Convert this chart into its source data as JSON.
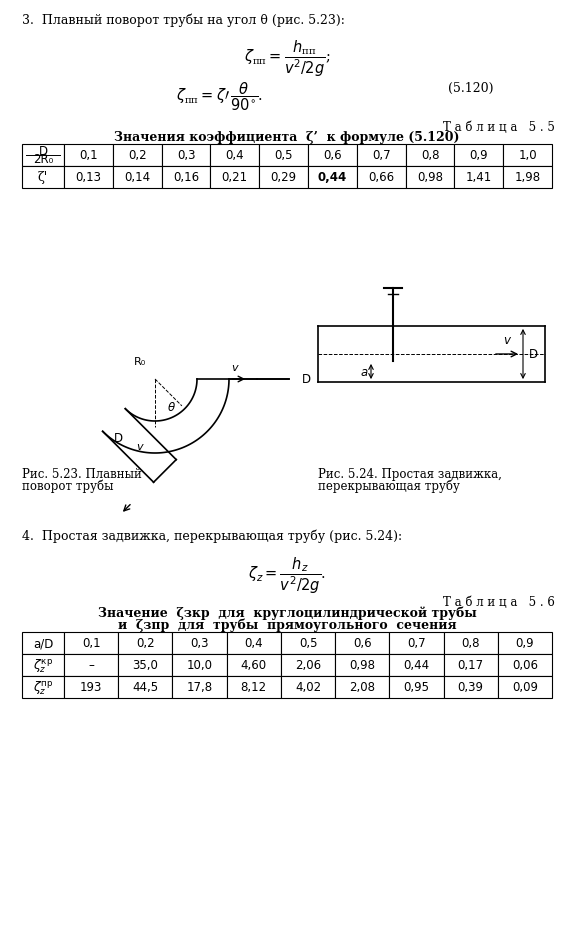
{
  "title_section3": "3.  Плавный поворот трубы на угол θ (рис. 5.23):",
  "formula3_2_number": "(5.120)",
  "table55_title": "Т а б л и ц а   5 . 5",
  "table55_header": "Значения коэффициента  ζ’  к формуле (5.120)",
  "table55_row1": [
    "0,1",
    "0,2",
    "0,3",
    "0,4",
    "0,5",
    "0,6",
    "0,7",
    "0,8",
    "0,9",
    "1,0"
  ],
  "table55_row2": [
    "0,13",
    "0,14",
    "0,16",
    "0,21",
    "0,29",
    "0,44",
    "0,66",
    "0,98",
    "1,41",
    "1,98"
  ],
  "bold_value_55": "0,44",
  "fig523_caption_line1": "Рис. 5.23. Плавный",
  "fig523_caption_line2": "поворот трубы",
  "fig524_caption_line1": "Рис. 5.24. Простая задвижка,",
  "fig524_caption_line2": "перекрывающая трубу",
  "title_section4": "4.  Простая задвижка, перекрывающая трубу (рис. 5.24):",
  "table56_title": "Т а б л и ц а   5 . 6",
  "table56_header_line1": "Значение  ζзкр  для  круглоцилиндрической трубы",
  "table56_header_line2": "и  ζзпр  для  трубы  прямоугольного  сечения",
  "table56_row1": [
    "0,1",
    "0,2",
    "0,3",
    "0,4",
    "0,5",
    "0,6",
    "0,7",
    "0,8",
    "0,9"
  ],
  "table56_row2": [
    "–",
    "35,0",
    "10,0",
    "4,60",
    "2,06",
    "0,98",
    "0,44",
    "0,17",
    "0,06"
  ],
  "table56_row3": [
    "193",
    "44,5",
    "17,8",
    "8,12",
    "4,02",
    "2,08",
    "0,95",
    "0,39",
    "0,09"
  ],
  "bg_color": "#ffffff"
}
